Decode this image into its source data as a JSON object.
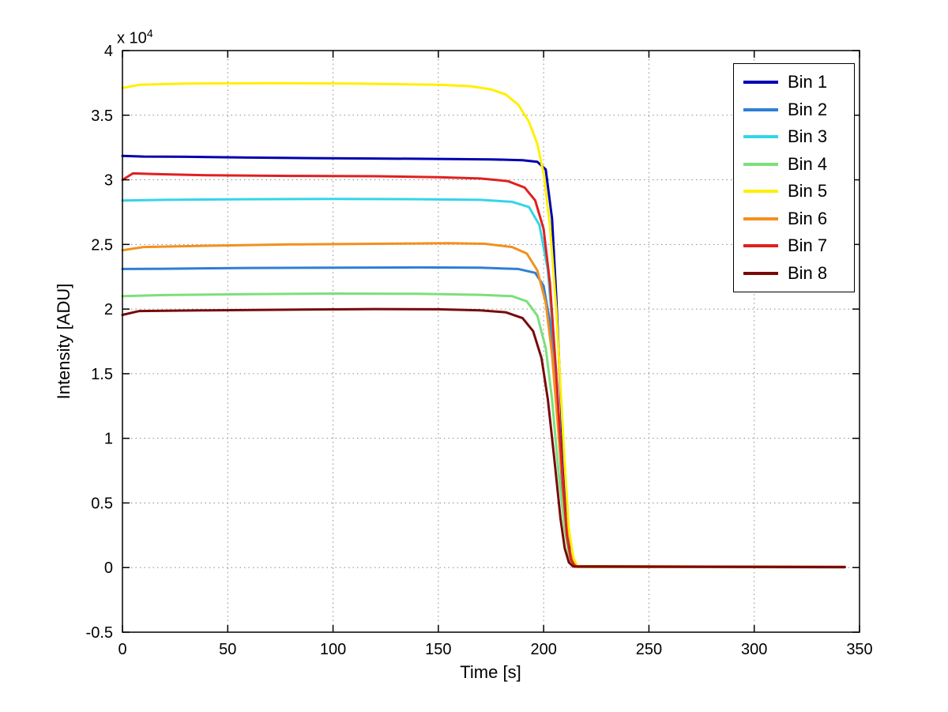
{
  "figure": {
    "background": "#ffffff"
  },
  "chart_data": {
    "type": "line",
    "title": "",
    "xlabel": "Time [s]",
    "ylabel": "Intensity [ADU]",
    "y_exponent_base": "x 10",
    "y_exponent_power": "4",
    "y_unit_scale": 10000,
    "xlim": [
      0,
      350
    ],
    "ylim": [
      -0.5,
      4
    ],
    "xticks": [
      0,
      50,
      100,
      150,
      200,
      250,
      300,
      350
    ],
    "yticks": [
      -0.5,
      0,
      0.5,
      1,
      1.5,
      2,
      2.5,
      3,
      3.5,
      4
    ],
    "grid": true,
    "grid_style": "dotted",
    "legend_position": "top-right",
    "axis_color": "#000000",
    "description": "Flat intensity plateaus per bin from t=0 to ~195 s, steep drop to zero around t=200-215 s, zero until t~343 s. Y values are in units of 10^4 ADU.",
    "series": [
      {
        "name": "Bin 1",
        "color": "#0000B0",
        "plateau_adu": 31700,
        "points": [
          [
            0,
            3.185
          ],
          [
            10,
            3.18
          ],
          [
            30,
            3.178
          ],
          [
            60,
            3.172
          ],
          [
            90,
            3.168
          ],
          [
            120,
            3.165
          ],
          [
            150,
            3.162
          ],
          [
            175,
            3.158
          ],
          [
            190,
            3.152
          ],
          [
            197,
            3.14
          ],
          [
            201,
            3.08
          ],
          [
            204,
            2.7
          ],
          [
            206,
            2.1
          ],
          [
            208,
            1.35
          ],
          [
            210,
            0.6
          ],
          [
            212,
            0.18
          ],
          [
            214,
            0.03
          ],
          [
            216,
            0.005
          ],
          [
            343,
            0.003
          ]
        ]
      },
      {
        "name": "Bin 2",
        "color": "#2E7FD4",
        "plateau_adu": 23200,
        "points": [
          [
            0,
            2.31
          ],
          [
            20,
            2.312
          ],
          [
            60,
            2.318
          ],
          [
            100,
            2.32
          ],
          [
            140,
            2.322
          ],
          [
            170,
            2.32
          ],
          [
            188,
            2.31
          ],
          [
            196,
            2.28
          ],
          [
            200,
            2.18
          ],
          [
            203,
            1.9
          ],
          [
            206,
            1.3
          ],
          [
            209,
            0.6
          ],
          [
            211,
            0.22
          ],
          [
            213,
            0.05
          ],
          [
            215,
            0.008
          ],
          [
            343,
            0.003
          ]
        ]
      },
      {
        "name": "Bin 3",
        "color": "#33D6E6",
        "plateau_adu": 28500,
        "points": [
          [
            0,
            2.84
          ],
          [
            20,
            2.845
          ],
          [
            60,
            2.85
          ],
          [
            100,
            2.852
          ],
          [
            140,
            2.85
          ],
          [
            170,
            2.845
          ],
          [
            185,
            2.83
          ],
          [
            193,
            2.79
          ],
          [
            198,
            2.65
          ],
          [
            202,
            2.3
          ],
          [
            205,
            1.7
          ],
          [
            208,
            0.95
          ],
          [
            210,
            0.45
          ],
          [
            212,
            0.15
          ],
          [
            214,
            0.03
          ],
          [
            216,
            0.005
          ],
          [
            343,
            0.004
          ]
        ]
      },
      {
        "name": "Bin 4",
        "color": "#7CDF7C",
        "plateau_adu": 21100,
        "points": [
          [
            0,
            2.1
          ],
          [
            20,
            2.108
          ],
          [
            60,
            2.115
          ],
          [
            100,
            2.12
          ],
          [
            140,
            2.118
          ],
          [
            170,
            2.11
          ],
          [
            185,
            2.1
          ],
          [
            192,
            2.06
          ],
          [
            197,
            1.95
          ],
          [
            201,
            1.7
          ],
          [
            204,
            1.3
          ],
          [
            207,
            0.75
          ],
          [
            210,
            0.3
          ],
          [
            212,
            0.1
          ],
          [
            214,
            0.02
          ],
          [
            216,
            0.004
          ],
          [
            343,
            0.003
          ]
        ]
      },
      {
        "name": "Bin 5",
        "color": "#FFF000",
        "plateau_adu": 37400,
        "points": [
          [
            0,
            3.71
          ],
          [
            8,
            3.735
          ],
          [
            30,
            3.745
          ],
          [
            70,
            3.748
          ],
          [
            110,
            3.745
          ],
          [
            150,
            3.735
          ],
          [
            165,
            3.725
          ],
          [
            175,
            3.7
          ],
          [
            182,
            3.66
          ],
          [
            188,
            3.58
          ],
          [
            193,
            3.45
          ],
          [
            197,
            3.28
          ],
          [
            200,
            3.05
          ],
          [
            203,
            2.65
          ],
          [
            206,
            2.0
          ],
          [
            208,
            1.4
          ],
          [
            210,
            0.8
          ],
          [
            212,
            0.3
          ],
          [
            214,
            0.08
          ],
          [
            216,
            0.01
          ],
          [
            343,
            0.005
          ]
        ]
      },
      {
        "name": "Bin 6",
        "color": "#F2901E",
        "plateau_adu": 25000,
        "points": [
          [
            0,
            2.455
          ],
          [
            10,
            2.48
          ],
          [
            40,
            2.49
          ],
          [
            80,
            2.5
          ],
          [
            120,
            2.505
          ],
          [
            155,
            2.51
          ],
          [
            172,
            2.505
          ],
          [
            185,
            2.48
          ],
          [
            192,
            2.43
          ],
          [
            197,
            2.3
          ],
          [
            201,
            2.05
          ],
          [
            204,
            1.65
          ],
          [
            207,
            1.05
          ],
          [
            210,
            0.45
          ],
          [
            212,
            0.15
          ],
          [
            214,
            0.03
          ],
          [
            216,
            0.005
          ],
          [
            343,
            0.004
          ]
        ]
      },
      {
        "name": "Bin 7",
        "color": "#E02020",
        "plateau_adu": 30300,
        "points": [
          [
            0,
            3.0
          ],
          [
            5,
            3.05
          ],
          [
            15,
            3.045
          ],
          [
            40,
            3.035
          ],
          [
            80,
            3.03
          ],
          [
            120,
            3.028
          ],
          [
            150,
            3.02
          ],
          [
            170,
            3.01
          ],
          [
            183,
            2.99
          ],
          [
            191,
            2.94
          ],
          [
            196,
            2.84
          ],
          [
            200,
            2.62
          ],
          [
            203,
            2.2
          ],
          [
            206,
            1.5
          ],
          [
            209,
            0.7
          ],
          [
            211,
            0.25
          ],
          [
            213,
            0.06
          ],
          [
            215,
            0.01
          ],
          [
            343,
            0.005
          ]
        ]
      },
      {
        "name": "Bin 8",
        "color": "#780A0A",
        "plateau_adu": 19900,
        "points": [
          [
            0,
            1.955
          ],
          [
            8,
            1.985
          ],
          [
            40,
            1.99
          ],
          [
            80,
            1.995
          ],
          [
            120,
            2.0
          ],
          [
            150,
            1.998
          ],
          [
            170,
            1.99
          ],
          [
            182,
            1.975
          ],
          [
            190,
            1.93
          ],
          [
            195,
            1.83
          ],
          [
            199,
            1.62
          ],
          [
            202,
            1.3
          ],
          [
            205,
            0.85
          ],
          [
            208,
            0.38
          ],
          [
            210,
            0.15
          ],
          [
            212,
            0.04
          ],
          [
            214,
            0.008
          ],
          [
            343,
            0.004
          ]
        ]
      }
    ]
  }
}
